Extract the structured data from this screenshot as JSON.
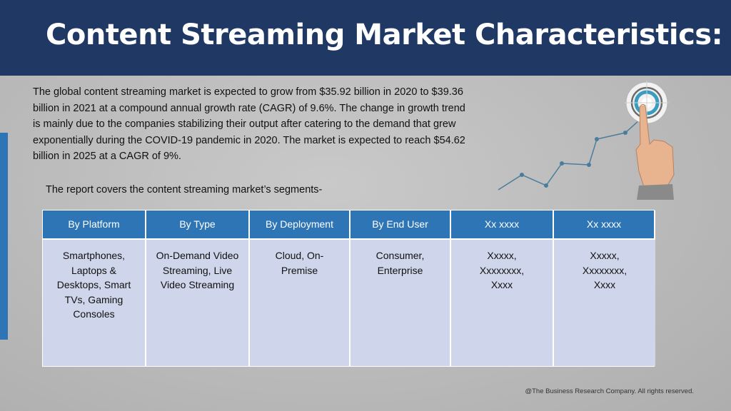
{
  "header": {
    "title": "Content Streaming Market Characteristics:"
  },
  "intro_text": "The global content streaming market is expected to grow from $35.92 billion in 2020 to $39.36 billion in 2021 at a compound annual growth rate (CAGR) of 9.6%. The change in growth trend is mainly due to the companies stabilizing their output after catering to the demand that grew exponentially during the COVID-19 pandemic in 2020. The market is expected to reach $54.62 billion in 2025 at a CAGR of 9%.",
  "segments_lead": "The report covers the content streaming market’s segments-",
  "segments": {
    "headers": [
      "By Platform",
      "By Type",
      "By Deployment",
      "By End User",
      "Xx xxxx",
      "Xx xxxx"
    ],
    "cells": [
      "Smartphones,\nLaptops &\nDesktops, Smart\nTVs, Gaming\nConsoles",
      "On-Demand Video\nStreaming, Live\nVideo Streaming",
      "Cloud, On-\nPremise",
      "Consumer,\nEnterprise",
      "Xxxxx,\nXxxxxxxx,\nXxxx",
      "Xxxxx,\nXxxxxxxx,\nXxxx"
    ]
  },
  "footer": "@The Business Research Company. All rights reserved.",
  "colors": {
    "title_bar": "#1f3864",
    "accent_blue": "#2e75b6",
    "cell_fill": "#cfd5ea",
    "trend_line": "#4a7d9c"
  },
  "graphic": {
    "icons": [
      "trend-line-icon",
      "target-icon",
      "pointing-hand-icon"
    ]
  }
}
